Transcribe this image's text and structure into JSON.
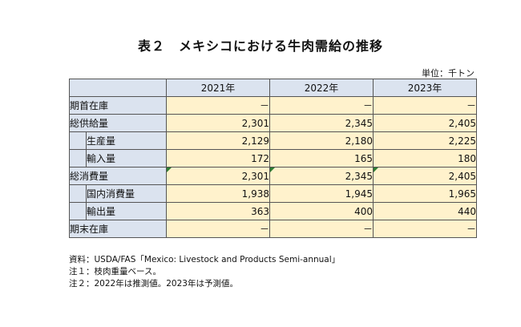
{
  "title": "表２　メキシコにおける牛肉需給の推移",
  "unit": "単位：千トン",
  "columns": [
    "2021年",
    "2022年",
    "2023年"
  ],
  "rows": [
    {
      "label": "期首在庫",
      "values": [
        "－",
        "－",
        "－"
      ]
    },
    {
      "label": "総供給量",
      "values": [
        "2,301",
        "2,345",
        "2,405"
      ]
    },
    {
      "label": "生産量",
      "values": [
        "2,129",
        "2,180",
        "2,225"
      ]
    },
    {
      "label": "輸入量",
      "values": [
        "172",
        "165",
        "180"
      ]
    },
    {
      "label": "総消費量",
      "values": [
        "2,301",
        "2,345",
        "2,405"
      ]
    },
    {
      "label": "国内消費量",
      "values": [
        "1,938",
        "1,945",
        "1,965"
      ]
    },
    {
      "label": "輸出量",
      "values": [
        "363",
        "400",
        "440"
      ]
    },
    {
      "label": "期末在庫",
      "values": [
        "－",
        "－",
        "－"
      ]
    }
  ],
  "notes": [
    "資料：USDA/FAS「Mexico: Livestock and Products Semi-annual」",
    "注１：枝肉重量ベース。",
    "注２：2022年は推測値。2023年は予測値。"
  ]
}
